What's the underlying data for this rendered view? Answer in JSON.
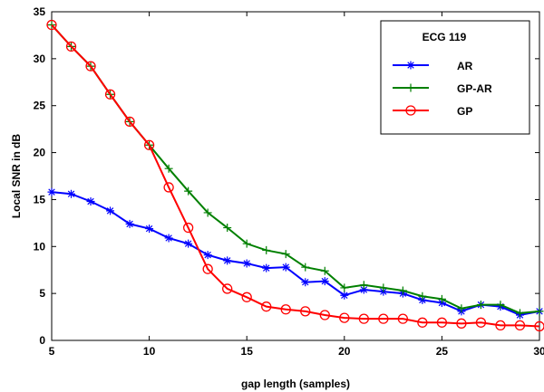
{
  "chart_data": {
    "type": "line",
    "xlabel": "gap length (samples)",
    "ylabel": "Local SNR in dB",
    "xlim": [
      5,
      30
    ],
    "ylim": [
      0,
      35
    ],
    "xticks": [
      5,
      10,
      15,
      20,
      25,
      30
    ],
    "yticks": [
      0,
      5,
      10,
      15,
      20,
      25,
      30,
      35
    ],
    "grid": false,
    "legend": {
      "title": "ECG 119",
      "position": "top-right"
    },
    "x": [
      5,
      6,
      7,
      8,
      9,
      10,
      11,
      12,
      13,
      14,
      15,
      16,
      17,
      18,
      19,
      20,
      21,
      22,
      23,
      24,
      25,
      26,
      27,
      28,
      29,
      30
    ],
    "series": [
      {
        "name": "AR",
        "color": "#0000ff",
        "marker": "asterisk",
        "values": [
          15.8,
          15.6,
          14.8,
          13.8,
          12.4,
          11.9,
          10.9,
          10.3,
          9.1,
          8.5,
          8.2,
          7.7,
          7.8,
          6.2,
          6.3,
          4.8,
          5.4,
          5.2,
          5.0,
          4.3,
          4.0,
          3.1,
          3.8,
          3.6,
          2.7,
          3.1
        ]
      },
      {
        "name": "GP-AR",
        "color": "#008000",
        "marker": "plus",
        "values": [
          33.6,
          31.3,
          29.2,
          26.2,
          23.3,
          20.8,
          18.3,
          15.9,
          13.6,
          12.0,
          10.3,
          9.6,
          9.2,
          7.8,
          7.4,
          5.6,
          5.9,
          5.6,
          5.3,
          4.7,
          4.4,
          3.4,
          3.8,
          3.8,
          2.9,
          3.1
        ]
      },
      {
        "name": "GP",
        "color": "#ff0000",
        "marker": "circle",
        "values": [
          33.6,
          31.3,
          29.2,
          26.2,
          23.3,
          20.8,
          16.3,
          12.0,
          7.6,
          5.5,
          4.6,
          3.6,
          3.3,
          3.1,
          2.7,
          2.4,
          2.3,
          2.3,
          2.3,
          1.9,
          1.9,
          1.8,
          1.9,
          1.6,
          1.6,
          1.5
        ]
      }
    ]
  }
}
